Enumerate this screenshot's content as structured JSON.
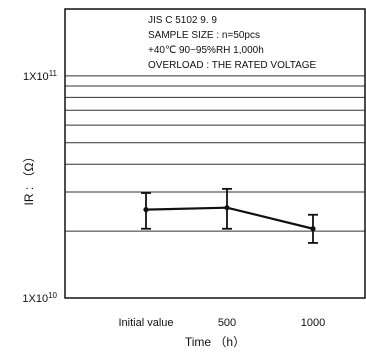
{
  "chart_data": {
    "type": "line",
    "title": "",
    "annotation_lines": [
      "JIS C 5102 9. 9",
      "SAMPLE SIZE : n=50pcs",
      "+40℃ 90~95%RH 1,000h",
      "OVERLOAD : THE RATED VOLTAGE"
    ],
    "xlabel": "Time （h）",
    "ylabel": "IR : （Ω）",
    "categories": [
      "Initial value",
      "500",
      "1000"
    ],
    "y_scale": "log",
    "ylim": [
      10000000000,
      200000000000
    ],
    "y_ticks": [
      {
        "value": 10000000000,
        "base": "1X10",
        "exp": "10"
      },
      {
        "value": 100000000000,
        "base": "1X10",
        "exp": "11"
      }
    ],
    "horizontal_grid_values": [
      20000000000,
      30000000000,
      40000000000,
      50000000000,
      60000000000,
      70000000000,
      80000000000,
      90000000000,
      100000000000
    ],
    "series": [
      {
        "values": [
          25000000000,
          25500000000,
          20500000000
        ],
        "error_min": [
          20500000000,
          20500000000,
          17700000000
        ],
        "error_max": [
          29700000000,
          31000000000,
          23700000000
        ]
      }
    ],
    "grid": "horizontal",
    "colors": {
      "line": "#111111",
      "grid": "#333333",
      "frame": "#111111"
    }
  }
}
